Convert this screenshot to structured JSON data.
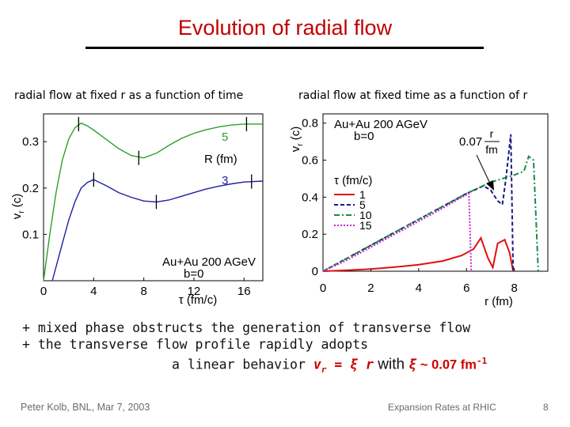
{
  "slide": {
    "title": "Evolution of radial flow",
    "caption_left": "radial flow at fixed r as a function of time",
    "caption_right": "radial flow at fixed time as a function of r",
    "footer_left": "Peter Kolb, BNL, Mar 7, 2003",
    "footer_center": "Expansion Rates at RHIC",
    "page_number": "8"
  },
  "bullets": {
    "line1": "+ mixed phase obstructs the generation of transverse flow",
    "line2": "+ the transverse flow profile rapidly adopts",
    "line3_prefix": "a linear behavior ",
    "formula_lhs": "v",
    "formula_sub": "r",
    "formula_rhs": " = ξ r",
    "line3_with": " with ",
    "xi_symbol": "ξ",
    "xi_value": " ~ 0.07 fm",
    "xi_exponent": "-1"
  },
  "chart_data": [
    {
      "type": "line",
      "xlabel": "τ (fm/c)",
      "ylabel": "v r (c)",
      "xlim": [
        0,
        17.5
      ],
      "ylim": [
        0,
        0.36
      ],
      "x_ticks": [
        "0",
        "4",
        "8",
        "12",
        "16"
      ],
      "y_ticks": [
        "0.1",
        "0.2",
        "0.3"
      ],
      "grid": false,
      "legend": {
        "title": "R (fm)",
        "entries": [
          "5",
          "3"
        ]
      },
      "annotation": [
        "Au+Au 200 AGeV",
        "b=0"
      ],
      "colors": [
        "#2ca02c",
        "#1f1fa0"
      ],
      "series": [
        {
          "name": "5",
          "x": [
            0,
            0.5,
            1.0,
            1.5,
            2.0,
            2.5,
            3.0,
            3.5,
            4.0,
            5.0,
            6.0,
            7.0,
            8.0,
            9.0,
            10.0,
            11.0,
            12.0,
            13.0,
            14.0,
            15.0,
            16.0,
            17.5
          ],
          "y": [
            0,
            0.1,
            0.19,
            0.26,
            0.305,
            0.33,
            0.34,
            0.334,
            0.325,
            0.305,
            0.285,
            0.27,
            0.265,
            0.275,
            0.292,
            0.307,
            0.318,
            0.326,
            0.332,
            0.336,
            0.338,
            0.338
          ]
        },
        {
          "name": "3",
          "x": [
            0.7,
            1.5,
            2.0,
            2.5,
            3.0,
            3.5,
            4.0,
            5.0,
            6.0,
            7.0,
            8.0,
            9.0,
            10.0,
            11.0,
            12.0,
            13.0,
            14.0,
            15.0,
            16.0,
            17.5
          ],
          "y": [
            0,
            0.08,
            0.13,
            0.17,
            0.2,
            0.212,
            0.218,
            0.205,
            0.19,
            0.18,
            0.172,
            0.17,
            0.174,
            0.182,
            0.19,
            0.198,
            0.204,
            0.209,
            0.213,
            0.215
          ]
        }
      ],
      "boundary_ticks": [
        {
          "series": "5",
          "x": 2.8,
          "y": 0.338
        },
        {
          "series": "5",
          "x": 7.6,
          "y": 0.265
        },
        {
          "series": "5",
          "x": 16.2,
          "y": 0.338
        },
        {
          "series": "3",
          "x": 4.0,
          "y": 0.218
        },
        {
          "series": "3",
          "x": 9.0,
          "y": 0.17
        },
        {
          "series": "3",
          "x": 16.6,
          "y": 0.214
        }
      ]
    },
    {
      "type": "line",
      "xlabel": "r (fm)",
      "ylabel": "v r (c)",
      "xlim": [
        0,
        9.4
      ],
      "ylim": [
        0,
        0.85
      ],
      "x_ticks": [
        "0",
        "2",
        "4",
        "6",
        "8"
      ],
      "y_ticks": [
        "0",
        "0.2",
        "0.4",
        "0.6",
        "0.8"
      ],
      "grid": false,
      "legend": {
        "title": "τ (fm/c)",
        "entries": [
          "1",
          "5",
          "10",
          "15"
        ]
      },
      "annotation": [
        "Au+Au 200 AGeV",
        "b=0"
      ],
      "arrow_label": {
        "prefix": "0.07",
        "numerator": "r",
        "denominator": "fm"
      },
      "colors": [
        "#e01010",
        "#1a1a80",
        "#1a8a4a",
        "#cc22cc"
      ],
      "series": [
        {
          "name": "1",
          "x": [
            0,
            1,
            2,
            3,
            4,
            5,
            5.8,
            6.3,
            6.6,
            6.9,
            7.1,
            7.3,
            7.6,
            7.8,
            7.95
          ],
          "y": [
            0,
            0.005,
            0.012,
            0.022,
            0.035,
            0.055,
            0.085,
            0.12,
            0.18,
            0.07,
            0.02,
            0.15,
            0.17,
            0.1,
            0
          ]
        },
        {
          "name": "5",
          "x": [
            0,
            1,
            2,
            3,
            4,
            5,
            6,
            6.7,
            7.0,
            7.3,
            7.5,
            7.65,
            7.85,
            7.95
          ],
          "y": [
            0,
            0.07,
            0.14,
            0.21,
            0.28,
            0.35,
            0.42,
            0.46,
            0.44,
            0.38,
            0.36,
            0.5,
            0.74,
            0
          ]
        },
        {
          "name": "10",
          "x": [
            0,
            1,
            2,
            3,
            4,
            5,
            6,
            7,
            7.5,
            8.0,
            8.4,
            8.6,
            8.8,
            9.0
          ],
          "y": [
            0,
            0.07,
            0.14,
            0.21,
            0.28,
            0.35,
            0.42,
            0.48,
            0.5,
            0.52,
            0.54,
            0.62,
            0.6,
            0
          ]
        },
        {
          "name": "15",
          "x": [
            0,
            1,
            2,
            3,
            4,
            5,
            5.8,
            6.1,
            6.2
          ],
          "y": [
            0,
            0.06,
            0.13,
            0.2,
            0.27,
            0.34,
            0.4,
            0.42,
            0
          ]
        }
      ]
    }
  ]
}
